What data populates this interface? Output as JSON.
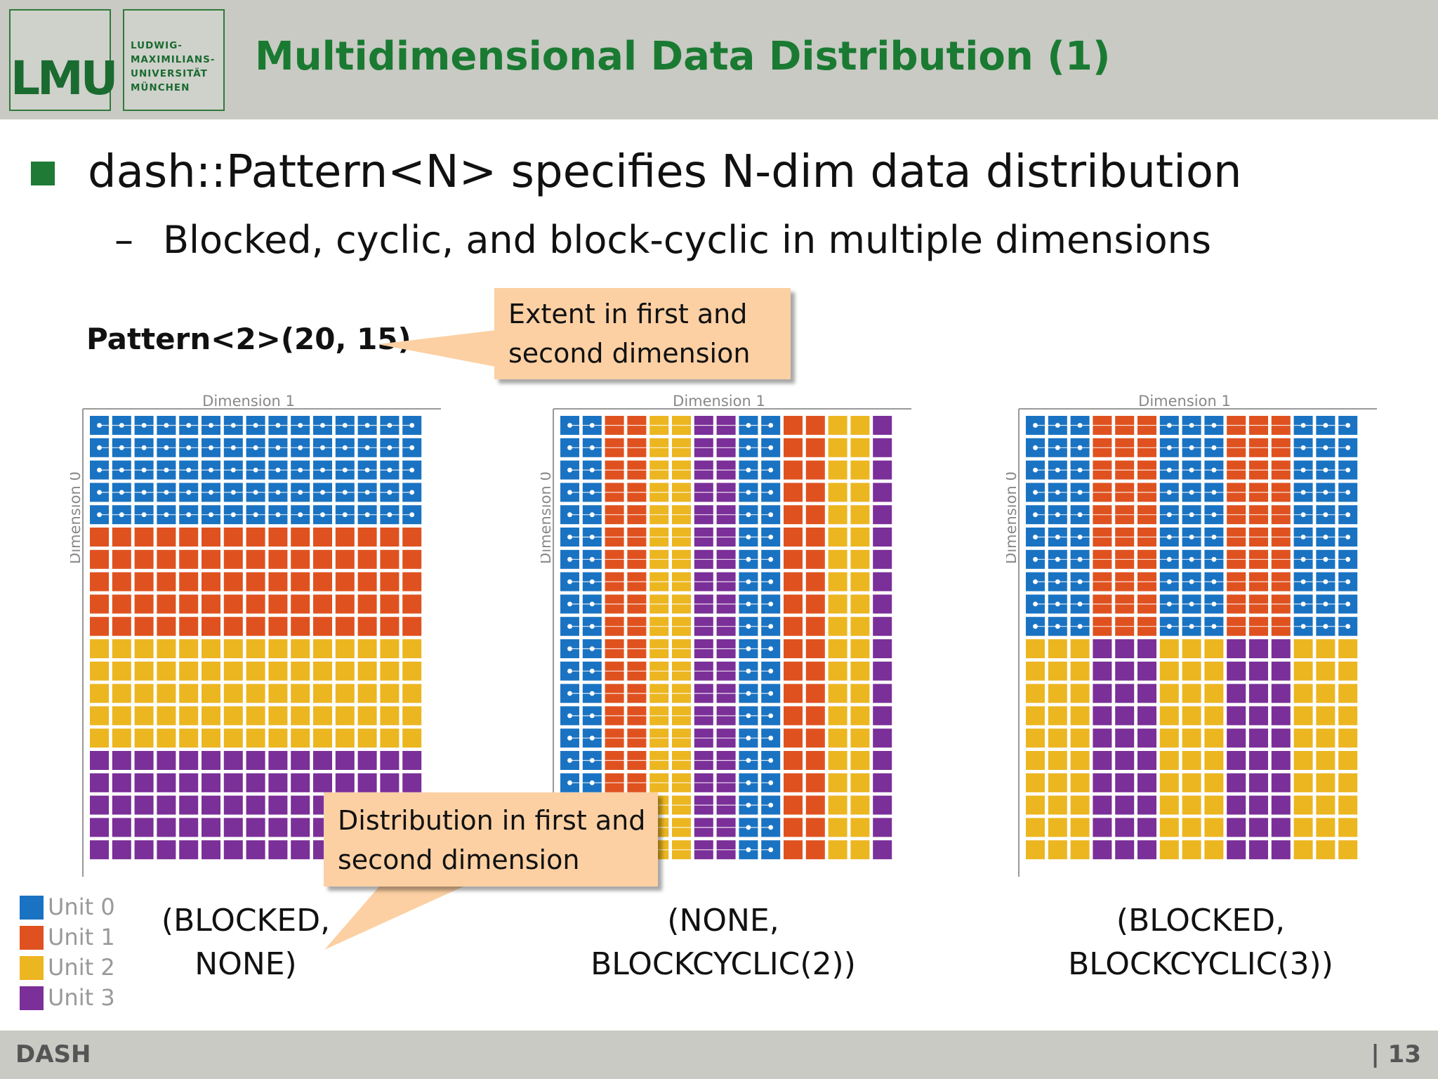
{
  "header": {
    "logo_mark": "LMU",
    "logo_name_lines": [
      "LUDWIG-",
      "MAXIMILIANS-",
      "UNIVERSITÄT",
      "MÜNCHEN"
    ],
    "title": "Multidimensional Data Distribution (1)"
  },
  "bullets": {
    "main": "dash::Pattern<N> specifies N-dim data distribution",
    "sub_marker": "–",
    "sub": "Blocked, cyclic, and block-cyclic in multiple dimensions"
  },
  "pattern_label": "Pattern<2>(20, 15)",
  "callouts": {
    "extent": [
      "Extent in first and",
      "second dimension"
    ],
    "distribution": [
      "Distribution in first and",
      "second dimension"
    ]
  },
  "grids": [
    {
      "axis_top": "Dimension 1",
      "axis_left": "Dimension 0",
      "label_lines": [
        "(BLOCKED,",
        "NONE)"
      ]
    },
    {
      "axis_top": "Dimension 1",
      "axis_left": "Dimension 0",
      "label_lines": [
        "(NONE,",
        "BLOCKCYCLIC(2))"
      ]
    },
    {
      "axis_top": "Dimension 1",
      "axis_left": "Dimension 0",
      "label_lines": [
        "(BLOCKED,",
        "BLOCKCYCLIC(3))"
      ]
    }
  ],
  "legend": [
    {
      "label": "Unit 0",
      "color": "#1a73c2"
    },
    {
      "label": "Unit 1",
      "color": "#df5220"
    },
    {
      "label": "Unit 2",
      "color": "#ecb621"
    },
    {
      "label": "Unit 3",
      "color": "#7b2f98"
    }
  ],
  "colors": {
    "header_bg": "#c8cac3",
    "title": "#1a7a32",
    "bullet": "#1e7a34",
    "callout_bg": "#fcd0a3"
  },
  "footer": {
    "left": "DASH",
    "right": "| 13"
  }
}
